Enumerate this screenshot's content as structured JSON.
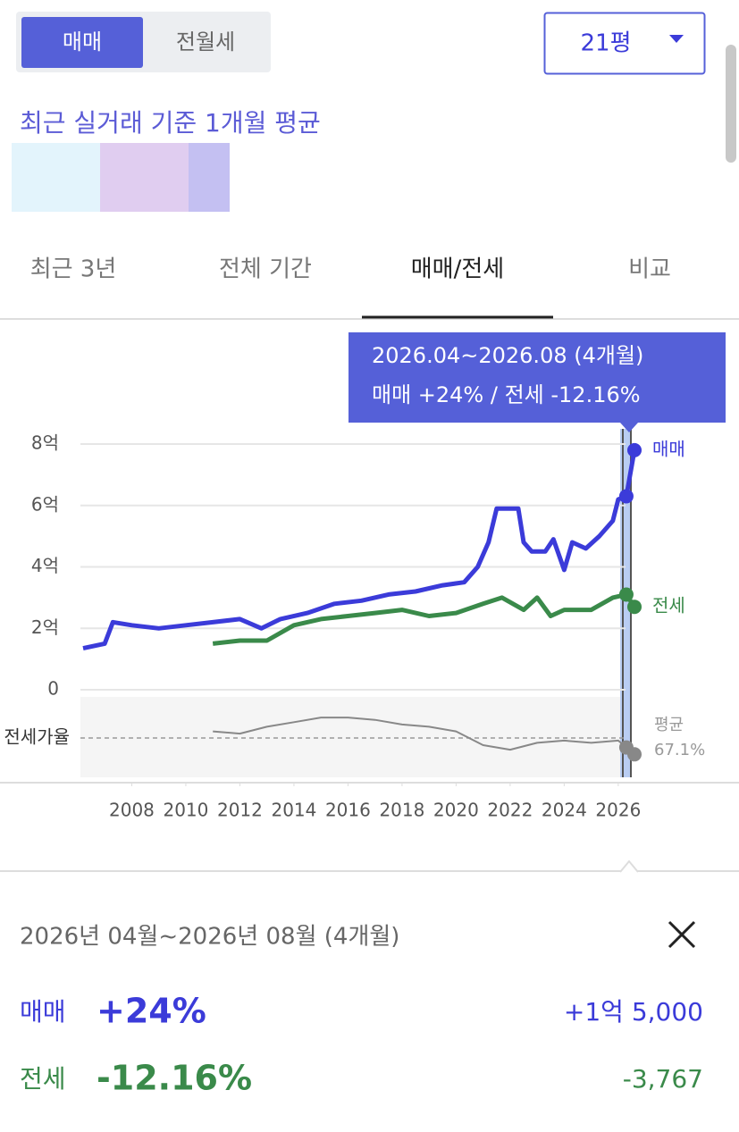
{
  "toggle": [
    "매매",
    "전월세"
  ],
  "dropdown": "21평",
  "subtitle": "최근 실거래 기준 1개월 평균",
  "period_tabs": [
    "최근 3년",
    "전체 기간",
    "매매/전세",
    "비교"
  ],
  "tooltip": {
    "line1": "2026.04~2026.08 (4개월)",
    "line2": "매매 +24%  /  전세 -12.16%"
  },
  "chart_data": {
    "type": "line",
    "xlim": [
      2006.1,
      2026.6
    ],
    "xticks": [
      2008,
      2010,
      2012,
      2014,
      2016,
      2018,
      2020,
      2022,
      2024,
      2026
    ],
    "ylim": [
      0,
      8
    ],
    "yticks": [
      {
        "value": 0,
        "label": "0"
      },
      {
        "value": 2,
        "label": "2억"
      },
      {
        "value": 4,
        "label": "4억"
      },
      {
        "value": 6,
        "label": "6억"
      },
      {
        "value": 8,
        "label": "8억"
      }
    ],
    "grid": true,
    "series": [
      {
        "name": "매매",
        "color": "#3b3bd9",
        "x": [
          2006.2,
          2007,
          2007.3,
          2008,
          2009,
          2010,
          2011,
          2012,
          2012.8,
          2013.5,
          2014.5,
          2015.5,
          2016.5,
          2017.5,
          2018.5,
          2019.5,
          2020.3,
          2020.8,
          2021.2,
          2021.5,
          2022.3,
          2022.5,
          2022.8,
          2023.3,
          2023.6,
          2024,
          2024.3,
          2024.8,
          2025.3,
          2025.8,
          2026,
          2026.3,
          2026.6
        ],
        "values": [
          1.35,
          1.5,
          2.2,
          2.1,
          2.0,
          2.1,
          2.2,
          2.3,
          2.0,
          2.3,
          2.5,
          2.8,
          2.9,
          3.1,
          3.2,
          3.4,
          3.5,
          4.0,
          4.8,
          5.9,
          5.9,
          4.8,
          4.5,
          4.5,
          4.9,
          3.9,
          4.8,
          4.6,
          5.0,
          5.5,
          6.2,
          6.3,
          7.8
        ]
      },
      {
        "name": "전세",
        "color": "#3a8a4a",
        "x": [
          2011,
          2012,
          2013,
          2014,
          2015,
          2016,
          2017,
          2018,
          2019,
          2020,
          2021,
          2021.7,
          2022.5,
          2023,
          2023.5,
          2024,
          2025,
          2025.8,
          2026.3,
          2026.6
        ],
        "values": [
          1.5,
          1.6,
          1.6,
          2.1,
          2.3,
          2.4,
          2.5,
          2.6,
          2.4,
          2.5,
          2.8,
          3.0,
          2.6,
          3.0,
          2.4,
          2.6,
          2.6,
          3.0,
          3.1,
          2.7
        ]
      }
    ],
    "ratio": {
      "label": "전세가율",
      "color": "#888888",
      "ylim": [
        50,
        85
      ],
      "x": [
        2011,
        2012,
        2013,
        2014,
        2015,
        2016,
        2017,
        2018,
        2019,
        2020,
        2021,
        2022,
        2023,
        2024,
        2025,
        2026,
        2026.3,
        2026.6
      ],
      "values": [
        70,
        69,
        72,
        74,
        76,
        76,
        75,
        73,
        72,
        70,
        64,
        62,
        65,
        66,
        65,
        66,
        63,
        60
      ],
      "avg_label": "평균",
      "avg": 67.1,
      "avg_value_label": "67.1%"
    }
  },
  "summary": {
    "period": "2026년 04월~2026년 08월 (4개월)",
    "rows": [
      {
        "name": "매매",
        "change": "+24%",
        "amount": "+1억 5,000"
      },
      {
        "name": "전세",
        "change": "-12.16%",
        "amount": "-3,767"
      }
    ]
  }
}
